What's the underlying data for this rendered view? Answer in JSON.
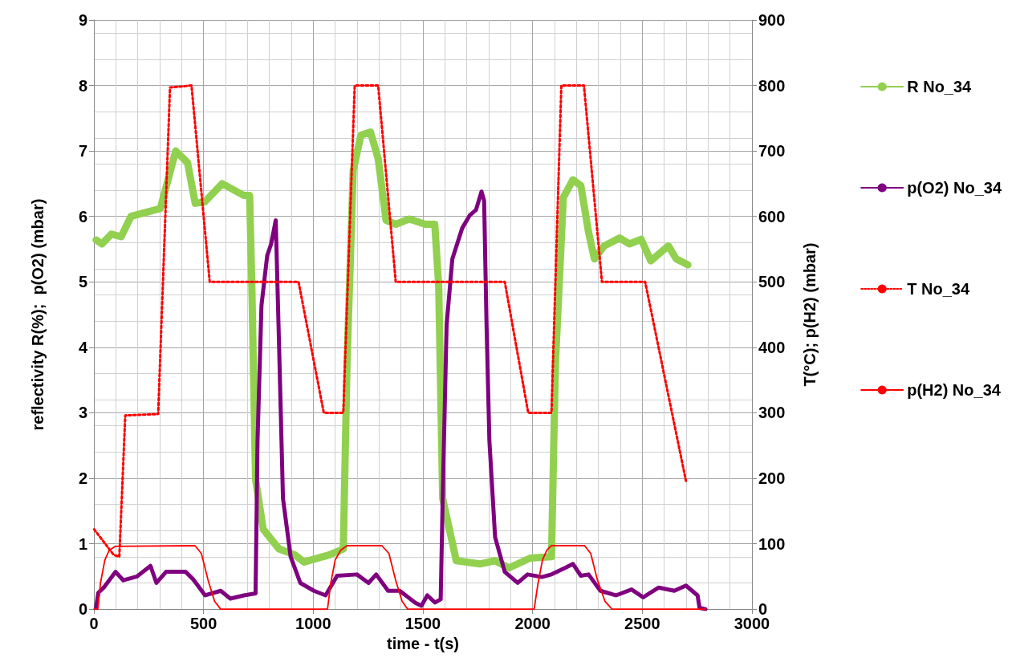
{
  "chart_data": {
    "type": "line",
    "xlabel": "time - t(s)",
    "ylabel": "reflectivity R(%);  p(O2) (mbar)",
    "y2label": "T(°C); p(H2) (mbar)",
    "xlim": [
      0,
      3000
    ],
    "xticks": [
      0,
      500,
      1000,
      1500,
      2000,
      2500,
      3000
    ],
    "ylim": [
      0,
      9
    ],
    "yticks": [
      0,
      1,
      2,
      3,
      4,
      5,
      6,
      7,
      8,
      9
    ],
    "y2lim": [
      0,
      900
    ],
    "y2ticks": [
      0,
      100,
      200,
      300,
      400,
      500,
      600,
      700,
      800,
      900
    ],
    "grid": true,
    "legend": "right",
    "marker": "none",
    "line_style": "solid",
    "series": [
      {
        "name": "R No_34",
        "color": "#92d050",
        "x": [
          10,
          37,
          80,
          124,
          169,
          303,
          373,
          427,
          462,
          505,
          585,
          684,
          710,
          720,
          737,
          772,
          844,
          915,
          958,
          1075,
          1137,
          1154,
          1182,
          1217,
          1261,
          1296,
          1332,
          1376,
          1438,
          1511,
          1554,
          1572,
          1590,
          1652,
          1759,
          1829,
          1892,
          1989,
          2086,
          2104,
          2140,
          2184,
          2220,
          2255,
          2282,
          2326,
          2397,
          2441,
          2495,
          2539,
          2619,
          2655,
          2708
        ],
        "values": [
          5.64,
          5.58,
          5.73,
          5.69,
          6.0,
          6.12,
          7.0,
          6.82,
          6.2,
          6.22,
          6.5,
          6.32,
          6.32,
          4.94,
          1.98,
          1.22,
          0.92,
          0.83,
          0.72,
          0.83,
          0.92,
          3.75,
          6.7,
          7.24,
          7.29,
          6.88,
          5.94,
          5.88,
          5.96,
          5.88,
          5.88,
          4.93,
          1.69,
          0.74,
          0.69,
          0.74,
          0.63,
          0.78,
          0.8,
          3.75,
          6.29,
          6.56,
          6.47,
          5.76,
          5.35,
          5.55,
          5.67,
          5.58,
          5.65,
          5.32,
          5.55,
          5.35,
          5.26
        ]
      },
      {
        "name": "p(O2) No_34",
        "color": "#7f007f",
        "x": [
          10,
          20,
          45,
          99,
          134,
          197,
          258,
          285,
          329,
          418,
          454,
          507,
          578,
          622,
          684,
          737,
          746,
          764,
          790,
          808,
          829,
          844,
          862,
          897,
          941,
          1003,
          1056,
          1109,
          1199,
          1252,
          1287,
          1341,
          1394,
          1464,
          1493,
          1520,
          1555,
          1581,
          1590,
          1608,
          1634,
          1679,
          1714,
          1742,
          1767,
          1779,
          1790,
          1803,
          1829,
          1873,
          1932,
          1977,
          2042,
          2086,
          2148,
          2184,
          2220,
          2255,
          2309,
          2380,
          2451,
          2504,
          2575,
          2646,
          2699,
          2752,
          2761,
          2788
        ],
        "values": [
          0.02,
          0.25,
          0.33,
          0.57,
          0.44,
          0.5,
          0.66,
          0.4,
          0.57,
          0.57,
          0.45,
          0.21,
          0.28,
          0.16,
          0.21,
          0.24,
          2.57,
          4.64,
          5.4,
          5.58,
          5.94,
          4.05,
          1.69,
          0.8,
          0.4,
          0.28,
          0.21,
          0.51,
          0.53,
          0.4,
          0.53,
          0.28,
          0.28,
          0.1,
          0.05,
          0.21,
          0.1,
          0.15,
          1.69,
          4.34,
          5.35,
          5.82,
          6.02,
          6.1,
          6.38,
          6.24,
          4.34,
          2.57,
          1.1,
          0.57,
          0.4,
          0.53,
          0.49,
          0.53,
          0.63,
          0.69,
          0.51,
          0.53,
          0.28,
          0.21,
          0.3,
          0.18,
          0.33,
          0.28,
          0.36,
          0.21,
          0.02,
          0
        ]
      },
      {
        "name": "T No_34",
        "color": "#ff0000",
        "axis": "y2",
        "line_style": "dotted",
        "x": [
          1,
          90,
          116,
          143,
          293,
          347,
          445,
          528,
          933,
          1048,
          1137,
          1189,
          1296,
          1376,
          1873,
          1980,
          2086,
          2131,
          2234,
          2316,
          2513,
          2699
        ],
        "values": [
          122,
          83,
          80,
          296,
          298,
          797,
          800,
          500,
          500,
          300,
          300,
          800,
          800,
          500,
          500,
          300,
          300,
          800,
          800,
          500,
          500,
          196
        ]
      },
      {
        "name": "p(H2) No_34",
        "color": "#ff0000",
        "axis": "y2",
        "x": [
          0,
          18,
          30,
          50,
          70,
          98,
          461,
          490,
          520,
          550,
          578,
          1065,
          1080,
          1100,
          1125,
          1154,
          1313,
          1345,
          1375,
          1405,
          1430,
          2007,
          2025,
          2045,
          2065,
          2086,
          2237,
          2265,
          2295,
          2330,
          2362,
          2788
        ],
        "values": [
          0,
          0,
          40,
          75,
          90,
          96,
          97,
          85,
          45,
          12,
          0,
          0,
          40,
          75,
          90,
          97,
          97,
          85,
          45,
          12,
          0,
          0,
          40,
          75,
          90,
          97,
          97,
          85,
          45,
          12,
          0,
          0
        ]
      }
    ]
  }
}
